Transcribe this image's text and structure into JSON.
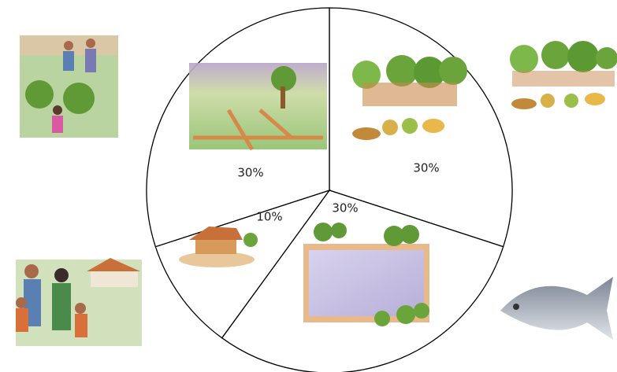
{
  "chart_data": {
    "type": "pie",
    "categories": [
      null,
      null,
      null,
      null
    ],
    "values": [
      30,
      30,
      10,
      30
    ],
    "value_labels": [
      "30%",
      "30%",
      "10%",
      "30%"
    ],
    "color": "#ffffff"
  }
}
